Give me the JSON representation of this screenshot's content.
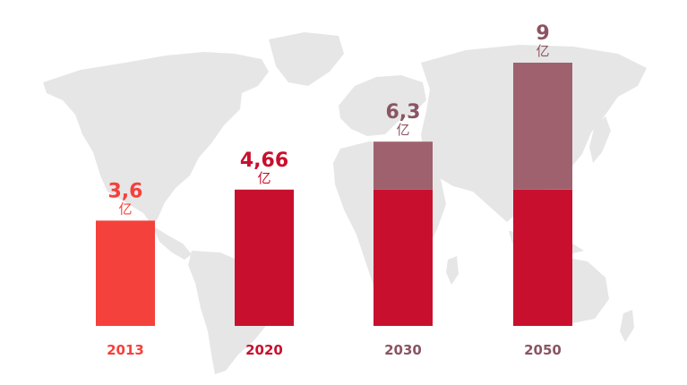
{
  "chart_data": {
    "type": "bar",
    "categories": [
      "2013",
      "2020",
      "2030",
      "2050"
    ],
    "series": [
      {
        "name": "base",
        "values": [
          3.6,
          4.66,
          4.66,
          4.66
        ]
      },
      {
        "name": "increment",
        "values": [
          0,
          0,
          1.64,
          4.34
        ]
      }
    ],
    "totals": [
      3.6,
      4.66,
      6.3,
      9
    ],
    "value_labels": [
      "3,6",
      "4,66",
      "6,3",
      "9"
    ],
    "unit": "亿",
    "ylim": [
      0,
      9
    ],
    "title": "",
    "xlabel": "",
    "ylabel": "",
    "colors": {
      "first_bar": "#F5413B",
      "base": "#C8102E",
      "increment": "#A0616E",
      "label_muted": "#8A5562",
      "map": "#E6E6E6"
    }
  }
}
